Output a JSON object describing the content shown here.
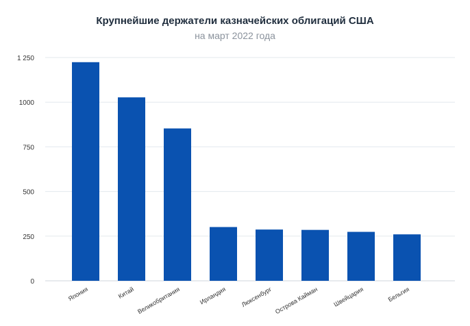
{
  "chart_data": {
    "type": "bar",
    "title": "Крупнейшие держатели казначейских облигаций США",
    "subtitle": "на март 2022 года",
    "categories": [
      "Япония",
      "Китай",
      "Великобритания",
      "Ирландия",
      "Люксенбург",
      "Острова Кайман",
      "Швейцария",
      "Бельгия"
    ],
    "values": [
      1224,
      1027,
      853,
      301,
      287,
      285,
      274,
      260
    ],
    "ylim": [
      0,
      1250
    ],
    "yticks": [
      0,
      250,
      500,
      750,
      1000,
      1250
    ],
    "ytick_labels": [
      "0",
      "250",
      "500",
      "750",
      "1000",
      "1 250"
    ],
    "grid": true,
    "colors": {
      "bar": "#0a52b0",
      "grid": "#e3e8ee",
      "axis": "#cfd6de"
    }
  }
}
